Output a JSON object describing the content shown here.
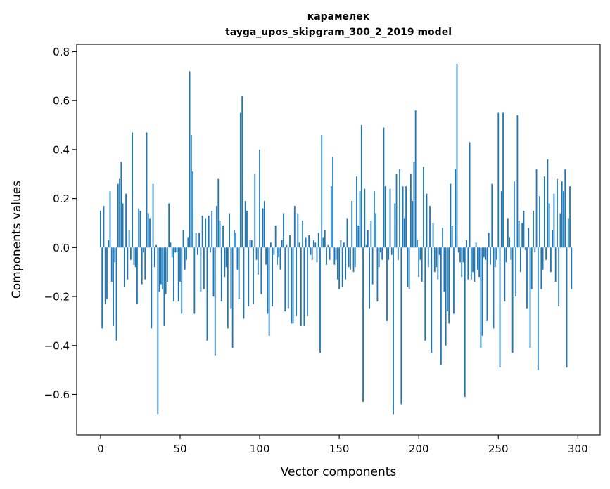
{
  "chart_data": {
    "type": "bar",
    "title": "карамелек",
    "subtitle": "tayga_upos_skipgram_300_2_2019 model",
    "xlabel": "Vector components",
    "ylabel": "Components values",
    "xlim": [
      -15,
      314
    ],
    "ylim": [
      -0.765,
      0.83
    ],
    "xticks": [
      0,
      50,
      100,
      150,
      200,
      250,
      300
    ],
    "xtick_labels": [
      "0",
      "50",
      "100",
      "150",
      "200",
      "250",
      "300"
    ],
    "yticks": [
      -0.6,
      -0.4,
      -0.2,
      0.0,
      0.2,
      0.4,
      0.6,
      0.8
    ],
    "ytick_labels": [
      "−0.6",
      "−0.4",
      "−0.2",
      "0.0",
      "0.2",
      "0.4",
      "0.6",
      "0.8"
    ],
    "bar_color": "#1f77b4",
    "grid": false,
    "legend": "none",
    "values": [
      0.15,
      -0.33,
      0.17,
      -0.23,
      -0.21,
      0.03,
      0.23,
      -0.14,
      -0.32,
      -0.06,
      -0.38,
      0.26,
      0.28,
      0.35,
      0.18,
      -0.16,
      0.22,
      -0.13,
      0.07,
      -0.05,
      0.47,
      -0.07,
      -0.08,
      -0.23,
      0.16,
      0.15,
      -0.15,
      -0.02,
      -0.13,
      0.47,
      0.14,
      0.12,
      -0.33,
      0.26,
      -0.08,
      0.01,
      -0.68,
      -0.18,
      -0.15,
      -0.17,
      -0.32,
      -0.19,
      -0.14,
      0.18,
      0.02,
      -0.04,
      -0.22,
      -0.02,
      -0.02,
      -0.22,
      -0.14,
      -0.27,
      0.07,
      -0.09,
      -0.05,
      0.04,
      0.72,
      0.46,
      0.31,
      -0.27,
      0.06,
      -0.03,
      0.06,
      -0.18,
      0.13,
      -0.17,
      0.12,
      -0.38,
      0.13,
      -0.02,
      0.15,
      -0.2,
      -0.44,
      0.17,
      0.28,
      0.11,
      -0.22,
      0.09,
      -0.12,
      -0.08,
      -0.33,
      0.14,
      -0.25,
      -0.41,
      0.07,
      0.06,
      -0.09,
      -0.21,
      0.55,
      0.62,
      -0.29,
      0.19,
      0.15,
      -0.24,
      0.03,
      0.03,
      -0.23,
      0.3,
      -0.05,
      -0.11,
      0.4,
      -0.19,
      0.16,
      0.19,
      -0.07,
      -0.27,
      -0.36,
      0.02,
      -0.24,
      -0.03,
      0.09,
      -0.07,
      -0.04,
      -0.09,
      0.03,
      0.14,
      -0.26,
      0.01,
      -0.25,
      0.05,
      -0.31,
      -0.31,
      0.17,
      -0.28,
      0.14,
      0.02,
      -0.32,
      0.11,
      -0.32,
      0.04,
      -0.28,
      0.05,
      -0.03,
      -0.05,
      0.03,
      0.02,
      -0.06,
      0.06,
      -0.43,
      0.46,
      0.04,
      0.07,
      -0.07,
      0.01,
      -0.05,
      0.25,
      0.37,
      -0.07,
      -0.05,
      -0.13,
      -0.17,
      0.03,
      -0.16,
      0.02,
      -0.13,
      0.12,
      -0.08,
      -0.09,
      0.19,
      -0.1,
      -0.08,
      0.29,
      0.09,
      0.23,
      0.5,
      -0.63,
      0.24,
      0.01,
      0.07,
      -0.25,
      0.11,
      -0.15,
      0.23,
      0.14,
      -0.22,
      -0.08,
      -0.02,
      -0.05,
      0.49,
      0.25,
      -0.3,
      -0.05,
      0.24,
      -0.03,
      -0.68,
      0.18,
      0.3,
      -0.05,
      0.32,
      -0.64,
      0.25,
      0.12,
      0.25,
      -0.16,
      -0.17,
      0.3,
      0.19,
      0.35,
      0.56,
      0.03,
      -0.12,
      -0.05,
      -0.14,
      0.33,
      -0.38,
      0.22,
      -0.08,
      0.17,
      -0.43,
      0.1,
      -0.1,
      -0.08,
      -0.13,
      -0.03,
      -0.48,
      0.08,
      -0.18,
      -0.4,
      -0.26,
      -0.31,
      0.26,
      0.09,
      -0.27,
      0.32,
      0.75,
      -0.02,
      -0.06,
      -0.12,
      -0.06,
      -0.61,
      0.03,
      -0.13,
      0.43,
      -0.13,
      -0.1,
      -0.14,
      0.02,
      -0.09,
      -0.12,
      -0.41,
      -0.36,
      -0.04,
      -0.05,
      -0.3,
      0.06,
      -0.07,
      0.26,
      -0.33,
      -0.08,
      -0.05,
      0.55,
      -0.49,
      0.23,
      0.55,
      -0.22,
      -0.06,
      0.12,
      0.04,
      -0.05,
      -0.43,
      0.27,
      -0.2,
      0.54,
      0.11,
      -0.1,
      0.1,
      0.15,
      -0.01,
      -0.25,
      0.08,
      -0.41,
      -0.17,
      0.15,
      -0.02,
      0.32,
      -0.5,
      0.21,
      -0.17,
      -0.09,
      0.29,
      -0.05,
      0.36,
      0.18,
      -0.1,
      0.07,
      0.22,
      -0.14,
      0.28,
      -0.24,
      0.14,
      0.27,
      0.23,
      0.32,
      -0.49,
      0.12,
      0.25,
      -0.17
    ]
  }
}
